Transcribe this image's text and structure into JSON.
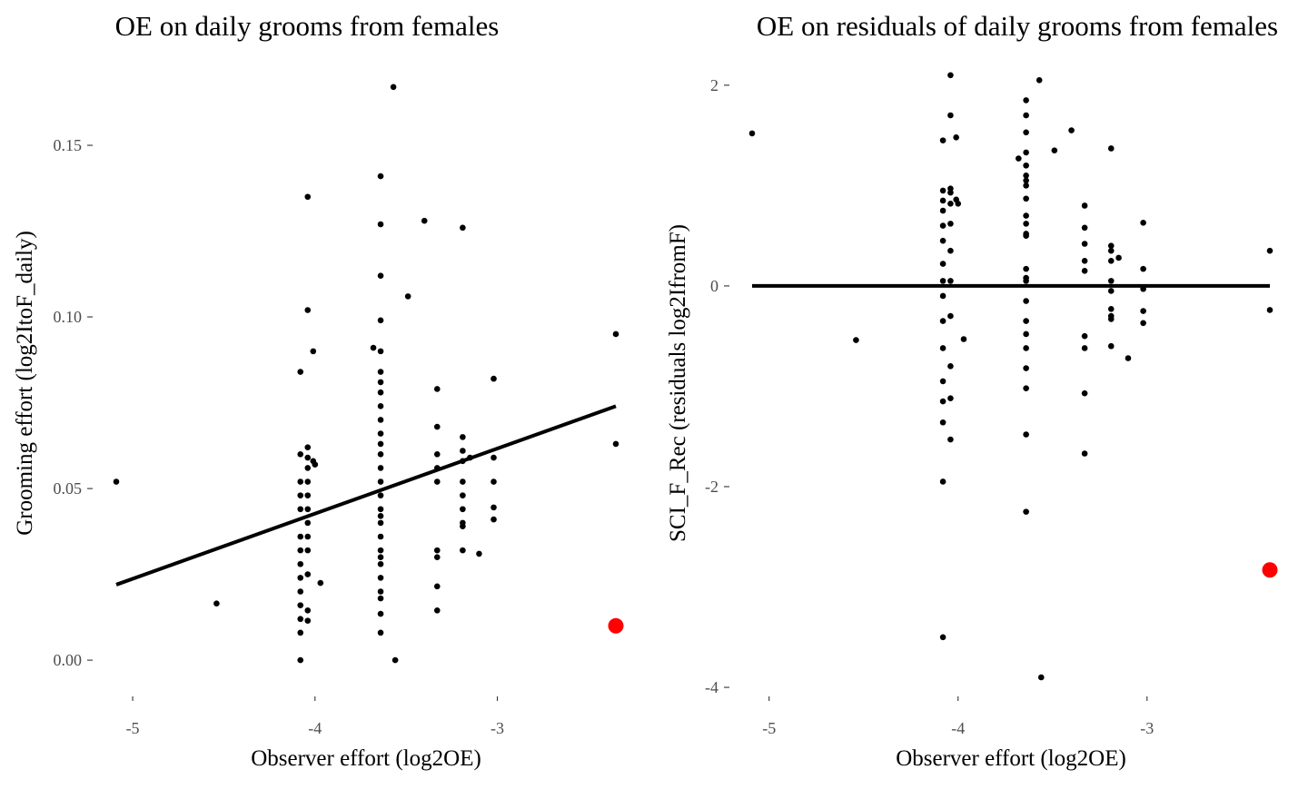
{
  "chart_data": [
    {
      "type": "scatter",
      "title": "OE on daily grooms from females",
      "xlabel": "Observer effort (log2OE)",
      "ylabel": "Grooming effort (log2ItoF_daily)",
      "xlim": [
        -5.09,
        -2.35
      ],
      "ylim": [
        -0.005,
        0.168
      ],
      "xticks": [
        -5,
        -4,
        -3
      ],
      "xtick_labels": [
        "-5",
        "-4",
        "-3"
      ],
      "yticks": [
        0.0,
        0.05,
        0.1,
        0.15
      ],
      "ytick_labels": [
        "0.00",
        "0.05",
        "0.10",
        "0.15"
      ],
      "grid": false,
      "fit_line": {
        "x": [
          -5.09,
          -2.35
        ],
        "y": [
          0.022,
          0.074
        ]
      },
      "highlight": {
        "x": -2.35,
        "y": 0.01,
        "color": "#ff0000"
      },
      "points": [
        [
          -5.09,
          0.052
        ],
        [
          -4.54,
          0.0165
        ],
        [
          -4.08,
          0.06
        ],
        [
          -4.08,
          0.052
        ],
        [
          -4.08,
          0.048
        ],
        [
          -4.08,
          0.044
        ],
        [
          -4.08,
          0.036
        ],
        [
          -4.08,
          0.032
        ],
        [
          -4.08,
          0.028
        ],
        [
          -4.08,
          0.024
        ],
        [
          -4.08,
          0.02
        ],
        [
          -4.08,
          0.016
        ],
        [
          -4.08,
          0.012
        ],
        [
          -4.08,
          0.008
        ],
        [
          -4.08,
          0.0
        ],
        [
          -4.08,
          0.084
        ],
        [
          -4.04,
          0.135
        ],
        [
          -4.04,
          0.062
        ],
        [
          -4.04,
          0.059
        ],
        [
          -4.04,
          0.056
        ],
        [
          -4.04,
          0.052
        ],
        [
          -4.04,
          0.048
        ],
        [
          -4.04,
          0.044
        ],
        [
          -4.04,
          0.04
        ],
        [
          -4.04,
          0.036
        ],
        [
          -4.04,
          0.032
        ],
        [
          -4.04,
          0.025
        ],
        [
          -4.04,
          0.0145
        ],
        [
          -4.04,
          0.0115
        ],
        [
          -4.04,
          0.102
        ],
        [
          -4.01,
          0.09
        ],
        [
          -4.01,
          0.058
        ],
        [
          -4.0,
          0.057
        ],
        [
          -3.97,
          0.0225
        ],
        [
          -3.68,
          0.091
        ],
        [
          -3.64,
          0.141
        ],
        [
          -3.64,
          0.127
        ],
        [
          -3.64,
          0.112
        ],
        [
          -3.64,
          0.099
        ],
        [
          -3.64,
          0.09
        ],
        [
          -3.64,
          0.084
        ],
        [
          -3.64,
          0.081
        ],
        [
          -3.64,
          0.078
        ],
        [
          -3.64,
          0.074
        ],
        [
          -3.64,
          0.07
        ],
        [
          -3.64,
          0.066
        ],
        [
          -3.64,
          0.063
        ],
        [
          -3.64,
          0.06
        ],
        [
          -3.64,
          0.056
        ],
        [
          -3.64,
          0.052
        ],
        [
          -3.64,
          0.048
        ],
        [
          -3.64,
          0.044
        ],
        [
          -3.64,
          0.042
        ],
        [
          -3.64,
          0.04
        ],
        [
          -3.64,
          0.036
        ],
        [
          -3.64,
          0.032
        ],
        [
          -3.64,
          0.03
        ],
        [
          -3.64,
          0.028
        ],
        [
          -3.64,
          0.024
        ],
        [
          -3.64,
          0.02
        ],
        [
          -3.64,
          0.018
        ],
        [
          -3.64,
          0.0135
        ],
        [
          -3.64,
          0.008
        ],
        [
          -3.57,
          0.167
        ],
        [
          -3.56,
          0.0
        ],
        [
          -3.49,
          0.106
        ],
        [
          -3.4,
          0.128
        ],
        [
          -3.33,
          0.079
        ],
        [
          -3.33,
          0.068
        ],
        [
          -3.33,
          0.06
        ],
        [
          -3.33,
          0.056
        ],
        [
          -3.33,
          0.052
        ],
        [
          -3.33,
          0.032
        ],
        [
          -3.33,
          0.03
        ],
        [
          -3.33,
          0.0215
        ],
        [
          -3.33,
          0.0145
        ],
        [
          -3.19,
          0.126
        ],
        [
          -3.19,
          0.065
        ],
        [
          -3.19,
          0.061
        ],
        [
          -3.19,
          0.058
        ],
        [
          -3.19,
          0.052
        ],
        [
          -3.19,
          0.048
        ],
        [
          -3.19,
          0.044
        ],
        [
          -3.19,
          0.04
        ],
        [
          -3.19,
          0.039
        ],
        [
          -3.19,
          0.032
        ],
        [
          -3.15,
          0.059
        ],
        [
          -3.1,
          0.031
        ],
        [
          -3.02,
          0.082
        ],
        [
          -3.02,
          0.059
        ],
        [
          -3.02,
          0.052
        ],
        [
          -3.02,
          0.0445
        ],
        [
          -3.02,
          0.041
        ],
        [
          -2.35,
          0.095
        ],
        [
          -2.35,
          0.063
        ]
      ]
    },
    {
      "type": "scatter",
      "title": "OE on residuals of daily grooms from females",
      "xlabel": "Observer effort (log2OE)",
      "ylabel": "SCI_F_Rec (residuals log2IfromF)",
      "xlim": [
        -5.09,
        -2.35
      ],
      "ylim": [
        -3.9,
        2.08
      ],
      "xticks": [
        -5,
        -4,
        -3
      ],
      "xtick_labels": [
        "-5",
        "-4",
        "-3"
      ],
      "yticks": [
        -4,
        -2,
        0,
        2
      ],
      "ytick_labels": [
        "-4",
        "-2",
        "0",
        "2"
      ],
      "grid": false,
      "fit_line": {
        "x": [
          -5.09,
          -2.35
        ],
        "y": [
          0.0,
          0.0
        ]
      },
      "highlight": {
        "x": -2.35,
        "y": -2.83,
        "color": "#ff0000"
      },
      "points": [
        [
          -5.09,
          1.52
        ],
        [
          -4.54,
          -0.54
        ],
        [
          -4.08,
          1.45
        ],
        [
          -4.08,
          0.95
        ],
        [
          -4.08,
          0.85
        ],
        [
          -4.08,
          0.75
        ],
        [
          -4.08,
          0.6
        ],
        [
          -4.08,
          0.45
        ],
        [
          -4.08,
          0.22
        ],
        [
          -4.08,
          0.05
        ],
        [
          -4.08,
          -0.1
        ],
        [
          -4.08,
          -0.35
        ],
        [
          -4.08,
          -0.62
        ],
        [
          -4.08,
          -0.95
        ],
        [
          -4.08,
          -1.15
        ],
        [
          -4.08,
          -1.36
        ],
        [
          -4.08,
          -1.95
        ],
        [
          -4.08,
          -3.5
        ],
        [
          -4.04,
          2.1
        ],
        [
          -4.04,
          1.7
        ],
        [
          -4.04,
          0.97
        ],
        [
          -4.04,
          0.93
        ],
        [
          -4.04,
          0.82
        ],
        [
          -4.04,
          0.62
        ],
        [
          -4.04,
          0.35
        ],
        [
          -4.04,
          0.05
        ],
        [
          -4.04,
          -0.3
        ],
        [
          -4.04,
          -0.8
        ],
        [
          -4.04,
          -1.12
        ],
        [
          -4.04,
          -1.53
        ],
        [
          -4.01,
          1.48
        ],
        [
          -4.01,
          0.86
        ],
        [
          -4.0,
          0.82
        ],
        [
          -3.97,
          -0.53
        ],
        [
          -3.68,
          1.27
        ],
        [
          -3.64,
          1.85
        ],
        [
          -3.64,
          1.7
        ],
        [
          -3.64,
          1.53
        ],
        [
          -3.64,
          1.33
        ],
        [
          -3.64,
          1.2
        ],
        [
          -3.64,
          1.1
        ],
        [
          -3.64,
          1.05
        ],
        [
          -3.64,
          1.0
        ],
        [
          -3.64,
          0.87
        ],
        [
          -3.64,
          0.7
        ],
        [
          -3.64,
          0.62
        ],
        [
          -3.64,
          0.52
        ],
        [
          -3.64,
          0.5
        ],
        [
          -3.64,
          0.17
        ],
        [
          -3.64,
          0.08
        ],
        [
          -3.64,
          0.05
        ],
        [
          -3.64,
          -0.15
        ],
        [
          -3.64,
          -0.35
        ],
        [
          -3.64,
          -0.48
        ],
        [
          -3.64,
          -0.62
        ],
        [
          -3.64,
          -0.82
        ],
        [
          -3.64,
          -1.02
        ],
        [
          -3.64,
          -1.48
        ],
        [
          -3.64,
          -2.25
        ],
        [
          -3.57,
          2.05
        ],
        [
          -3.56,
          -3.9
        ],
        [
          -3.49,
          1.35
        ],
        [
          -3.4,
          1.55
        ],
        [
          -3.33,
          0.8
        ],
        [
          -3.33,
          0.58
        ],
        [
          -3.33,
          0.42
        ],
        [
          -3.33,
          0.25
        ],
        [
          -3.33,
          0.15
        ],
        [
          -3.33,
          -0.5
        ],
        [
          -3.33,
          -0.62
        ],
        [
          -3.33,
          -1.07
        ],
        [
          -3.33,
          -1.67
        ],
        [
          -3.19,
          1.37
        ],
        [
          -3.19,
          0.4
        ],
        [
          -3.19,
          0.35
        ],
        [
          -3.19,
          0.25
        ],
        [
          -3.19,
          0.05
        ],
        [
          -3.19,
          -0.05
        ],
        [
          -3.19,
          -0.23
        ],
        [
          -3.19,
          -0.3
        ],
        [
          -3.19,
          -0.33
        ],
        [
          -3.19,
          -0.6
        ],
        [
          -3.15,
          0.28
        ],
        [
          -3.1,
          -0.72
        ],
        [
          -3.02,
          0.63
        ],
        [
          -3.02,
          0.17
        ],
        [
          -3.02,
          -0.03
        ],
        [
          -3.02,
          -0.25
        ],
        [
          -3.02,
          -0.37
        ],
        [
          -2.35,
          0.35
        ],
        [
          -2.35,
          -0.24
        ]
      ]
    }
  ]
}
